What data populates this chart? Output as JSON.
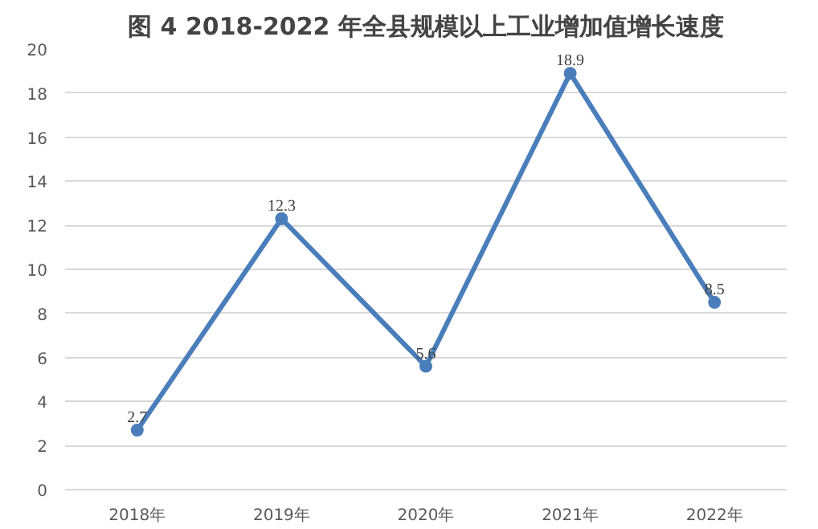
{
  "chart_data": {
    "type": "line",
    "title": "图 4 2018-2022 年全县规模以上工业增加值增长速度",
    "categories": [
      "2018年",
      "2019年",
      "2020年",
      "2021年",
      "2022年"
    ],
    "series": [
      {
        "color": "#4a7ebb",
        "values": [
          2.7,
          12.3,
          5.6,
          18.9,
          8.5
        ]
      }
    ],
    "ylim": [
      0,
      20
    ],
    "yticks": [
      0,
      2,
      4,
      6,
      8,
      10,
      12,
      14,
      16,
      18,
      20
    ],
    "grid": "y",
    "marker": "circle",
    "line_style": "solid",
    "data_labels": true
  }
}
